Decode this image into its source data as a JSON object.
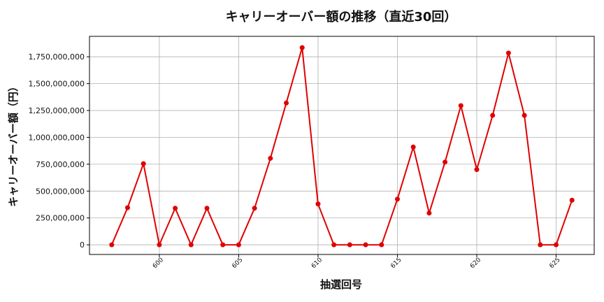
{
  "chart_data": {
    "type": "line",
    "title": "キャリーオーバー額の推移（直近30回）",
    "xlabel": "抽選回号",
    "ylabel": "キャリーオーバー額（円）",
    "xlim": [
      595.6,
      627.4
    ],
    "ylim": [
      -90000000,
      1940000000
    ],
    "grid": true,
    "color": "#e00000",
    "xticks": [
      600,
      605,
      610,
      615,
      620,
      625
    ],
    "xtick_labels": [
      "600",
      "605",
      "610",
      "615",
      "620",
      "625"
    ],
    "yticks": [
      0,
      250000000,
      500000000,
      750000000,
      1000000000,
      1250000000,
      1500000000,
      1750000000
    ],
    "ytick_labels": [
      "0",
      "250,000,000",
      "500,000,000",
      "750,000,000",
      "1,000,000,000",
      "1,250,000,000",
      "1,500,000,000",
      "1,750,000,000"
    ],
    "x": [
      597,
      598,
      599,
      600,
      601,
      602,
      603,
      604,
      605,
      606,
      607,
      608,
      609,
      610,
      611,
      612,
      613,
      614,
      615,
      616,
      617,
      618,
      619,
      620,
      621,
      622,
      623,
      624,
      625,
      626
    ],
    "values": [
      0,
      345000000,
      755000000,
      0,
      340000000,
      0,
      340000000,
      0,
      0,
      340000000,
      805000000,
      1320000000,
      1835000000,
      380000000,
      0,
      0,
      0,
      0,
      425000000,
      910000000,
      295000000,
      770000000,
      1295000000,
      700000000,
      1205000000,
      1785000000,
      1205000000,
      0,
      0,
      415000000
    ]
  }
}
